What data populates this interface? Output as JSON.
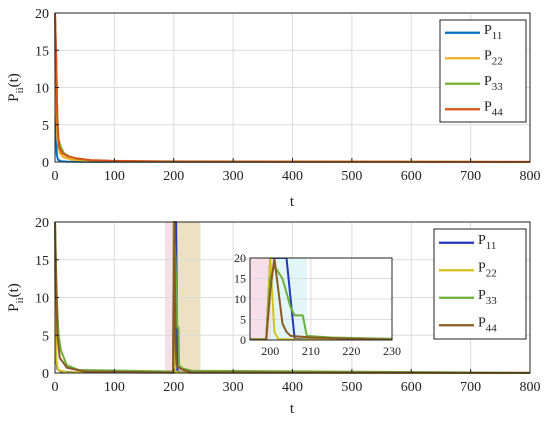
{
  "colors": {
    "P11": "#0072BD",
    "P22": "#EDB120",
    "P33": "#77AC30",
    "P44": "#D95319",
    "P11b": "#2139B8",
    "P22b": "#D4C11A",
    "P33b": "#6DAF3A",
    "P44b": "#8B5A22",
    "grid": "#dcdcdc",
    "axis": "#222222",
    "band_pink": "#F6D9E6",
    "band_tan": "#EBDCB8",
    "band_cyan": "#DDF3F6"
  },
  "chart_data": [
    {
      "type": "line",
      "ylabel_main": "P",
      "ylabel_sub": "ii",
      "ylabel_tail": "(t)",
      "xlabel": "t",
      "xlim": [
        0,
        800
      ],
      "ylim": [
        0,
        20
      ],
      "xticks": [
        "0",
        "100",
        "200",
        "300",
        "400",
        "500",
        "600",
        "700",
        "800"
      ],
      "yticks": [
        "0",
        "5",
        "10",
        "15",
        "20"
      ],
      "xtick_values": [
        0,
        100,
        200,
        300,
        400,
        500,
        600,
        700,
        800
      ],
      "ytick_values": [
        0,
        5,
        10,
        15,
        20
      ],
      "grid": true,
      "legend_position": "top-right",
      "series": [
        {
          "name": "P",
          "sub": "11",
          "color_key": "P11",
          "x": [
            0,
            1,
            2,
            3,
            5,
            10,
            20,
            50,
            100,
            800
          ],
          "y": [
            20,
            10,
            4,
            1,
            0.3,
            0.1,
            0.05,
            0.02,
            0.01,
            0
          ]
        },
        {
          "name": "P",
          "sub": "22",
          "color_key": "P22",
          "x": [
            0,
            1,
            2,
            4,
            8,
            15,
            30,
            60,
            100,
            800
          ],
          "y": [
            20,
            15,
            8,
            3,
            1.2,
            0.6,
            0.3,
            0.15,
            0.05,
            0
          ]
        },
        {
          "name": "P",
          "sub": "33",
          "color_key": "P33",
          "x": [
            0,
            2,
            4,
            6,
            10,
            15,
            25,
            40,
            60,
            100,
            800
          ],
          "y": [
            20,
            14,
            6,
            3,
            2,
            1.2,
            0.7,
            0.4,
            0.2,
            0.1,
            0.02
          ]
        },
        {
          "name": "P",
          "sub": "44",
          "color_key": "P44",
          "x": [
            0,
            2,
            4,
            7,
            12,
            20,
            35,
            60,
            100,
            200,
            800
          ],
          "y": [
            20,
            14,
            5,
            2,
            1.2,
            0.8,
            0.5,
            0.25,
            0.15,
            0.05,
            0.02
          ]
        }
      ]
    },
    {
      "type": "line",
      "ylabel_main": "P",
      "ylabel_sub": "ii",
      "ylabel_tail": "(t)",
      "xlabel": "t",
      "xlim": [
        0,
        800
      ],
      "ylim": [
        0,
        20
      ],
      "xticks": [
        "0",
        "100",
        "200",
        "300",
        "400",
        "500",
        "600",
        "700",
        "800"
      ],
      "yticks": [
        "0",
        "5",
        "10",
        "15",
        "20"
      ],
      "xtick_values": [
        0,
        100,
        200,
        300,
        400,
        500,
        600,
        700,
        800
      ],
      "ytick_values": [
        0,
        5,
        10,
        15,
        20
      ],
      "grid": true,
      "legend_position": "top-right",
      "shaded_ranges": [
        {
          "x0": 185,
          "x1": 200,
          "color_key": "band_pink"
        },
        {
          "x0": 200,
          "x1": 245,
          "color_key": "band_tan"
        }
      ],
      "series": [
        {
          "name": "P",
          "sub": "11",
          "color_key": "P11b",
          "x": [
            0,
            1,
            2,
            4,
            10,
            30,
            199,
            200,
            201,
            202,
            204,
            206,
            210,
            230,
            800
          ],
          "y": [
            20,
            8,
            2,
            0.5,
            0.2,
            0.1,
            0.05,
            20,
            20,
            20,
            20,
            0.3,
            0.1,
            0.05,
            0
          ]
        },
        {
          "name": "P",
          "sub": "22",
          "color_key": "P22b",
          "x": [
            0,
            1,
            2,
            5,
            20,
            199,
            200,
            201,
            202,
            210,
            800
          ],
          "y": [
            20,
            10,
            2,
            0.4,
            0.1,
            0.05,
            20,
            2,
            0.2,
            0.05,
            0
          ]
        },
        {
          "name": "P",
          "sub": "33",
          "color_key": "P33b",
          "x": [
            0,
            3,
            6,
            10,
            20,
            40,
            199,
            200,
            201,
            203,
            205,
            206,
            208,
            209,
            215,
            230,
            800
          ],
          "y": [
            20,
            10,
            5,
            3,
            1,
            0.4,
            0.2,
            15,
            18,
            15,
            8,
            6,
            6,
            1,
            0.6,
            0.3,
            0.02
          ]
        },
        {
          "name": "P",
          "sub": "44",
          "color_key": "P44b",
          "x": [
            0,
            2,
            4,
            8,
            20,
            50,
            199,
            200,
            201,
            202,
            203,
            204,
            205,
            210,
            220,
            230,
            800
          ],
          "y": [
            20,
            12,
            5,
            2,
            0.7,
            0.2,
            0.05,
            12,
            20,
            12,
            4,
            2,
            1,
            0.6,
            0.3,
            0.1,
            0.02
          ]
        }
      ],
      "inset": {
        "xlim": [
          195,
          230
        ],
        "ylim": [
          0,
          20
        ],
        "xticks": [
          "200",
          "210",
          "220",
          "230"
        ],
        "yticks": [
          "0",
          "5",
          "10",
          "15",
          "20"
        ],
        "xtick_values": [
          200,
          210,
          220,
          230
        ],
        "ytick_values": [
          0,
          5,
          10,
          15,
          20
        ],
        "grid": true,
        "shaded_ranges": [
          {
            "x0": 195,
            "x1": 200,
            "color_key": "band_pink"
          },
          {
            "x0": 200,
            "x1": 209,
            "color_key": "band_cyan"
          }
        ]
      }
    }
  ]
}
